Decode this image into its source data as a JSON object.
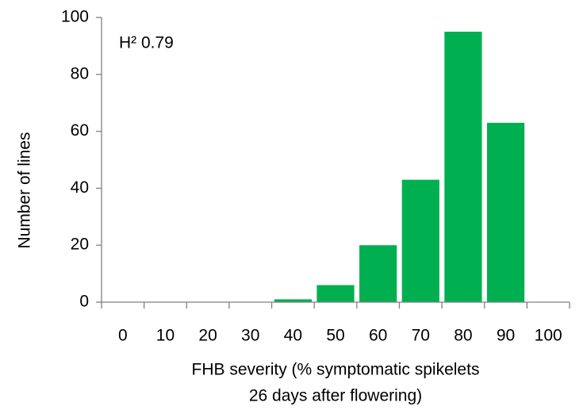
{
  "chart_data": {
    "type": "bar",
    "annotation": "H² 0.79",
    "ylabel": "Number of lines",
    "xlabel": [
      "FHB severity (% symptomatic spikelets",
      "26 days after flowering)"
    ],
    "categories": [
      "0",
      "10",
      "20",
      "30",
      "40",
      "50",
      "60",
      "70",
      "80",
      "90",
      "100"
    ],
    "values": [
      0,
      0,
      0,
      0,
      1,
      6,
      20,
      43,
      95,
      63,
      0
    ],
    "color": "#00b050",
    "ylim": [
      0,
      100
    ],
    "yticks": [
      0,
      20,
      40,
      60,
      80,
      100
    ],
    "grid": false
  }
}
